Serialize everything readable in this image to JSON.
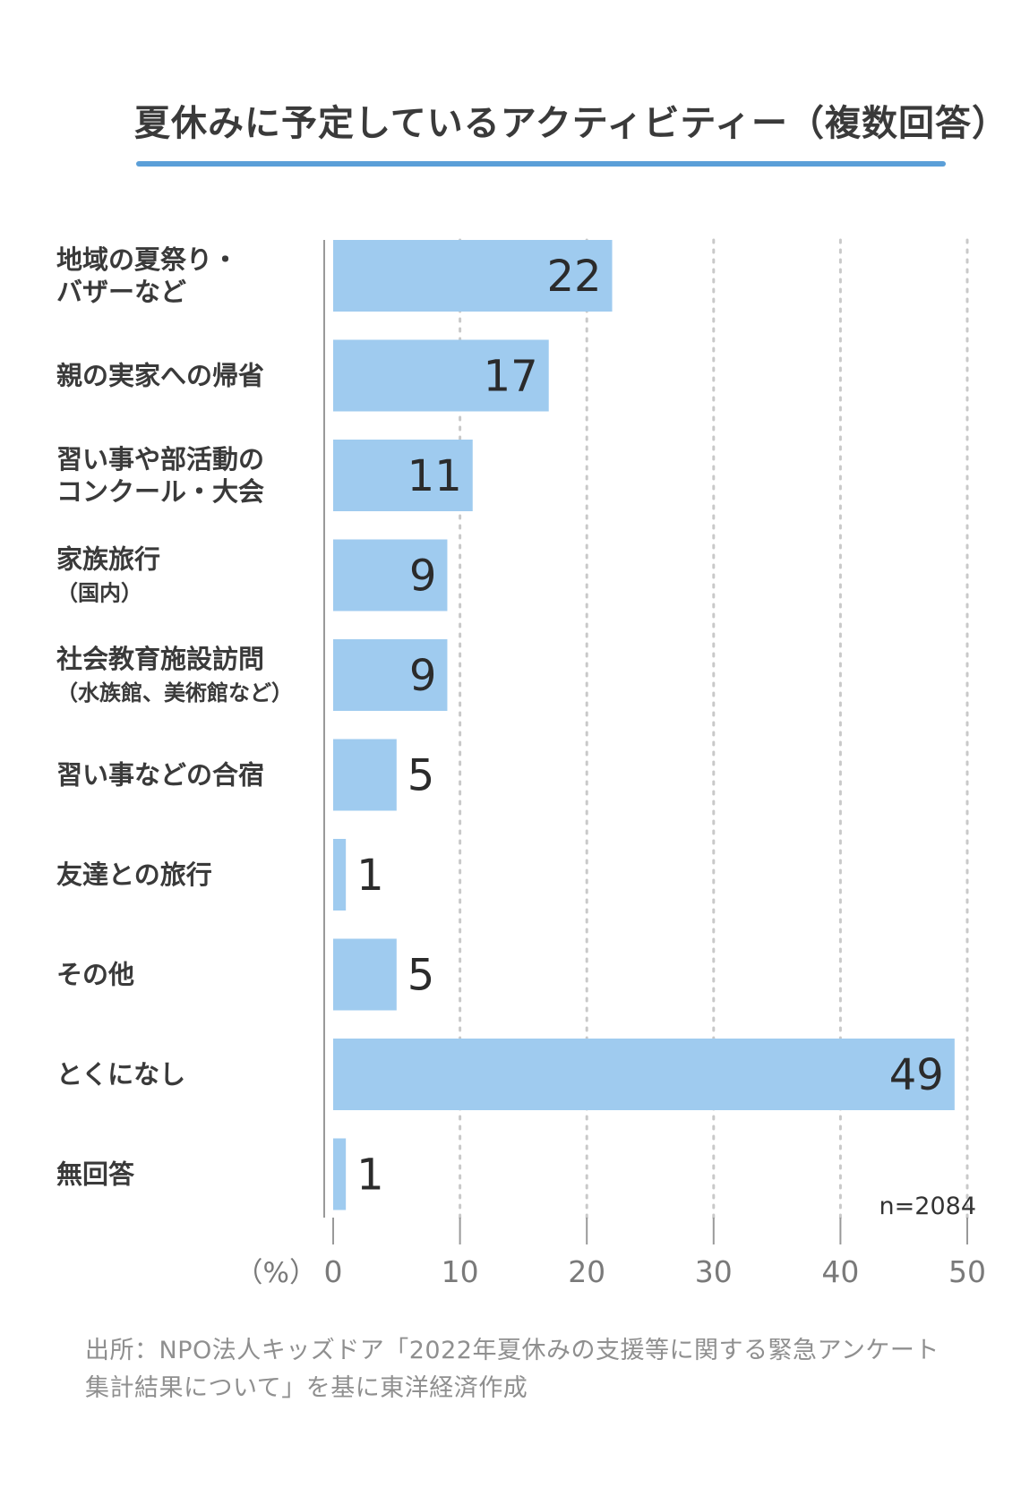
{
  "colors": {
    "bar": "#9fcbef",
    "accent": "#5b9fd8",
    "axis": "#999999",
    "grid": "#c9c9c9"
  },
  "chart_data": {
    "type": "bar",
    "orientation": "horizontal",
    "title": "夏休みに予定しているアクティビティー（複数回答）",
    "categories": [
      [
        "地域の夏祭り・",
        "バザーなど"
      ],
      [
        "親の実家への帰省"
      ],
      [
        "習い事や部活動の",
        "コンクール・大会"
      ],
      [
        "家族旅行",
        "（国内）"
      ],
      [
        "社会教育施設訪問",
        "（水族館、美術館など）"
      ],
      [
        "習い事などの合宿"
      ],
      [
        "友達との旅行"
      ],
      [
        "その他"
      ],
      [
        "とくになし"
      ],
      [
        "無回答"
      ]
    ],
    "values": [
      22,
      17,
      11,
      9,
      9,
      5,
      1,
      5,
      49,
      1
    ],
    "xlim": [
      0,
      50
    ],
    "x_ticks": [
      0,
      10,
      20,
      30,
      40,
      50
    ],
    "unit_label": "（%）",
    "sample_note": "n=2084",
    "grid": "dotted vertical"
  },
  "source": {
    "line1": "出所：NPO法人キッズドア「2022年夏休みの支援等に関する緊急アンケート",
    "line2": "集計結果について」を基に東洋経済作成"
  }
}
